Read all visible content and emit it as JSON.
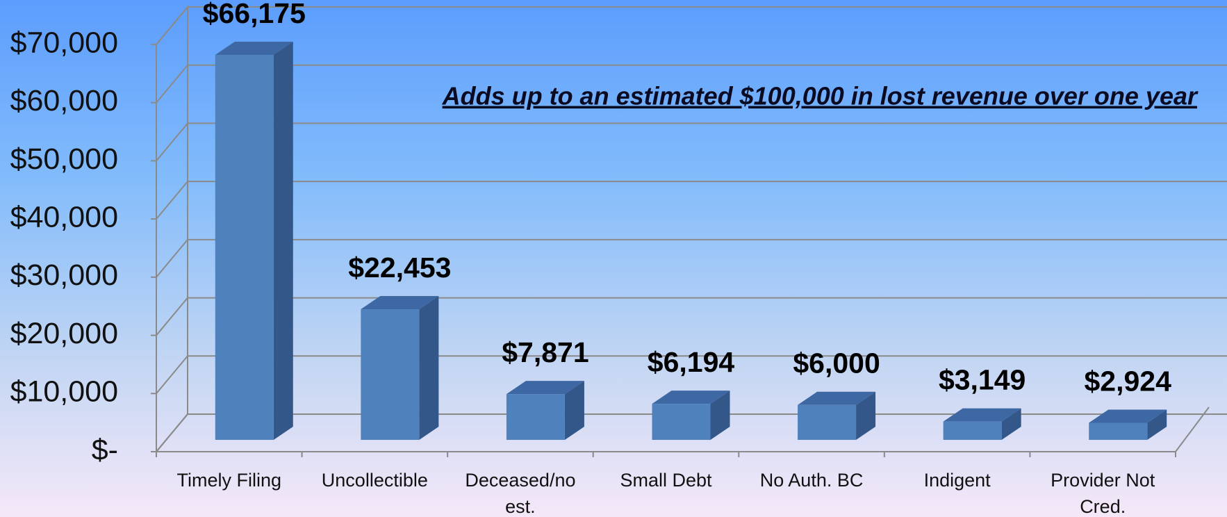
{
  "chart_data": {
    "type": "bar",
    "annotation": "Adds up to an estimated $100,000 in lost revenue over one year",
    "categories": [
      "Timely Filing",
      "Uncollectible",
      "Deceased/no est.",
      "Small Debt",
      "No Auth. BC",
      "Indigent",
      "Provider Not Cred."
    ],
    "values": [
      66175,
      22453,
      7871,
      6194,
      6000,
      3149,
      2924
    ],
    "value_labels": [
      "$66,175",
      "$22,453",
      "$7,871",
      "$6,194",
      "$6,000",
      "$3,149",
      "$2,924"
    ],
    "color": "#4f81bd",
    "ylim": [
      0,
      70000
    ],
    "yticks": [
      {
        "value": 0,
        "label": "$-"
      },
      {
        "value": 10000,
        "label": "$10,000"
      },
      {
        "value": 20000,
        "label": "$20,000"
      },
      {
        "value": 30000,
        "label": "$30,000"
      },
      {
        "value": 40000,
        "label": "$40,000"
      },
      {
        "value": 50000,
        "label": "$50,000"
      },
      {
        "value": 60000,
        "label": "$60,000"
      },
      {
        "value": 70000,
        "label": "$70,000"
      }
    ],
    "grid": true
  }
}
